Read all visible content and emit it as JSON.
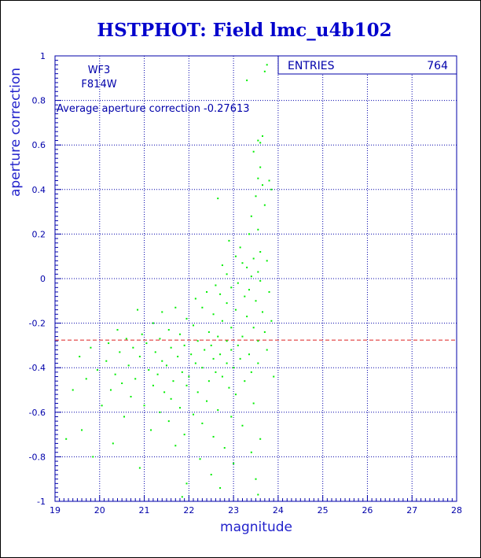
{
  "chart_data": {
    "type": "scatter",
    "title": "HSTPHOT: Field lmc_u4b102",
    "xlabel": "magnitude",
    "ylabel": "aperture correction",
    "xlim": [
      19,
      28
    ],
    "ylim": [
      -1,
      1
    ],
    "x_ticks": [
      "19",
      "20",
      "21",
      "22",
      "23",
      "24",
      "25",
      "26",
      "27",
      "28"
    ],
    "y_ticks": [
      "-1",
      "-0.8",
      "-0.6",
      "-0.4",
      "-0.2",
      "0",
      "0.2",
      "0.4",
      "0.6",
      "0.8",
      "1"
    ],
    "grid": true,
    "annotations": {
      "camera": "WF3",
      "filter": "F814W",
      "average_text": "Average aperture correction -0.27613"
    },
    "stats_box": {
      "label": "ENTRIES",
      "value": "764"
    },
    "reference_line": {
      "y": -0.27613,
      "style": "dashed",
      "color": "#dd2222"
    },
    "point_color": "#00ee00",
    "points": [
      [
        23.75,
        0.96
      ],
      [
        23.3,
        0.89
      ],
      [
        23.7,
        0.93
      ],
      [
        23.65,
        0.64
      ],
      [
        23.55,
        0.62
      ],
      [
        23.6,
        0.61
      ],
      [
        23.45,
        0.57
      ],
      [
        23.6,
        0.5
      ],
      [
        23.55,
        0.45
      ],
      [
        23.65,
        0.42
      ],
      [
        23.8,
        0.44
      ],
      [
        23.85,
        0.4
      ],
      [
        23.5,
        0.37
      ],
      [
        22.65,
        0.36
      ],
      [
        23.7,
        0.33
      ],
      [
        23.4,
        0.28
      ],
      [
        23.55,
        0.22
      ],
      [
        23.35,
        0.2
      ],
      [
        22.9,
        0.17
      ],
      [
        23.15,
        0.14
      ],
      [
        23.6,
        0.12
      ],
      [
        23.05,
        0.1
      ],
      [
        23.45,
        0.09
      ],
      [
        23.75,
        0.08
      ],
      [
        23.2,
        0.07
      ],
      [
        22.75,
        0.06
      ],
      [
        23.3,
        0.05
      ],
      [
        23.55,
        0.03
      ],
      [
        22.85,
        0.02
      ],
      [
        23.4,
        0.01
      ],
      [
        23.6,
        -0.01
      ],
      [
        23.1,
        -0.02
      ],
      [
        22.6,
        -0.03
      ],
      [
        22.95,
        -0.04
      ],
      [
        23.35,
        -0.05
      ],
      [
        22.4,
        -0.06
      ],
      [
        23.8,
        -0.06
      ],
      [
        22.7,
        -0.07
      ],
      [
        23.25,
        -0.08
      ],
      [
        22.15,
        -0.09
      ],
      [
        23.5,
        -0.1
      ],
      [
        22.85,
        -0.11
      ],
      [
        21.7,
        -0.13
      ],
      [
        22.3,
        -0.13
      ],
      [
        23.05,
        -0.14
      ],
      [
        23.65,
        -0.15
      ],
      [
        20.85,
        -0.14
      ],
      [
        21.4,
        -0.15
      ],
      [
        22.55,
        -0.16
      ],
      [
        23.3,
        -0.17
      ],
      [
        21.95,
        -0.18
      ],
      [
        22.75,
        -0.19
      ],
      [
        23.85,
        -0.19
      ],
      [
        21.2,
        -0.2
      ],
      [
        22.1,
        -0.21
      ],
      [
        22.95,
        -0.22
      ],
      [
        23.45,
        -0.22
      ],
      [
        20.4,
        -0.23
      ],
      [
        21.55,
        -0.23
      ],
      [
        22.45,
        -0.24
      ],
      [
        23.7,
        -0.24
      ],
      [
        20.95,
        -0.25
      ],
      [
        21.8,
        -0.25
      ],
      [
        22.65,
        -0.26
      ],
      [
        23.2,
        -0.26
      ],
      [
        20.6,
        -0.27
      ],
      [
        21.35,
        -0.27
      ],
      [
        22.2,
        -0.28
      ],
      [
        22.85,
        -0.28
      ],
      [
        23.55,
        -0.28
      ],
      [
        20.2,
        -0.29
      ],
      [
        21.05,
        -0.29
      ],
      [
        21.9,
        -0.3
      ],
      [
        22.5,
        -0.3
      ],
      [
        23.1,
        -0.3
      ],
      [
        19.8,
        -0.31
      ],
      [
        20.75,
        -0.31
      ],
      [
        21.6,
        -0.31
      ],
      [
        22.35,
        -0.32
      ],
      [
        22.95,
        -0.32
      ],
      [
        23.75,
        -0.32
      ],
      [
        20.45,
        -0.33
      ],
      [
        21.25,
        -0.33
      ],
      [
        22.05,
        -0.34
      ],
      [
        22.7,
        -0.34
      ],
      [
        23.35,
        -0.34
      ],
      [
        19.55,
        -0.35
      ],
      [
        20.9,
        -0.35
      ],
      [
        21.75,
        -0.35
      ],
      [
        22.55,
        -0.36
      ],
      [
        23.15,
        -0.36
      ],
      [
        20.15,
        -0.37
      ],
      [
        21.4,
        -0.37
      ],
      [
        22.15,
        -0.38
      ],
      [
        22.85,
        -0.38
      ],
      [
        23.55,
        -0.38
      ],
      [
        20.65,
        -0.39
      ],
      [
        21.5,
        -0.39
      ],
      [
        22.3,
        -0.4
      ],
      [
        23.0,
        -0.4
      ],
      [
        19.95,
        -0.41
      ],
      [
        21.1,
        -0.41
      ],
      [
        21.85,
        -0.42
      ],
      [
        22.6,
        -0.42
      ],
      [
        23.4,
        -0.42
      ],
      [
        20.35,
        -0.43
      ],
      [
        21.3,
        -0.43
      ],
      [
        22.0,
        -0.44
      ],
      [
        22.75,
        -0.44
      ],
      [
        23.9,
        -0.44
      ],
      [
        19.7,
        -0.45
      ],
      [
        20.8,
        -0.45
      ],
      [
        21.65,
        -0.46
      ],
      [
        22.45,
        -0.46
      ],
      [
        23.25,
        -0.46
      ],
      [
        20.5,
        -0.47
      ],
      [
        21.2,
        -0.48
      ],
      [
        21.95,
        -0.48
      ],
      [
        22.9,
        -0.49
      ],
      [
        19.4,
        -0.5
      ],
      [
        20.25,
        -0.5
      ],
      [
        21.45,
        -0.51
      ],
      [
        22.2,
        -0.51
      ],
      [
        23.05,
        -0.52
      ],
      [
        20.7,
        -0.53
      ],
      [
        21.6,
        -0.54
      ],
      [
        22.4,
        -0.55
      ],
      [
        23.45,
        -0.56
      ],
      [
        20.05,
        -0.57
      ],
      [
        21.0,
        -0.57
      ],
      [
        21.8,
        -0.58
      ],
      [
        22.65,
        -0.59
      ],
      [
        21.35,
        -0.6
      ],
      [
        22.1,
        -0.61
      ],
      [
        22.95,
        -0.62
      ],
      [
        20.55,
        -0.62
      ],
      [
        21.55,
        -0.64
      ],
      [
        22.3,
        -0.65
      ],
      [
        23.2,
        -0.66
      ],
      [
        19.6,
        -0.68
      ],
      [
        21.15,
        -0.68
      ],
      [
        21.9,
        -0.7
      ],
      [
        22.55,
        -0.71
      ],
      [
        23.6,
        -0.72
      ],
      [
        19.25,
        -0.72
      ],
      [
        20.3,
        -0.74
      ],
      [
        21.7,
        -0.75
      ],
      [
        22.8,
        -0.76
      ],
      [
        23.4,
        -0.78
      ],
      [
        19.85,
        -0.8
      ],
      [
        22.25,
        -0.81
      ],
      [
        23.0,
        -0.83
      ],
      [
        20.9,
        -0.85
      ],
      [
        22.5,
        -0.88
      ],
      [
        23.5,
        -0.9
      ],
      [
        21.95,
        -0.92
      ],
      [
        22.7,
        -0.94
      ],
      [
        23.55,
        -0.97
      ],
      [
        21.85,
        -0.98
      ]
    ]
  }
}
